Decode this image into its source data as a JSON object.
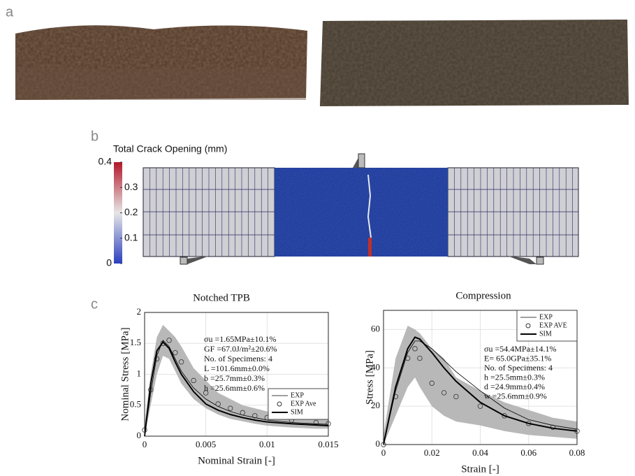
{
  "panels": {
    "a": "a",
    "b": "b",
    "c": "c"
  },
  "colorbar": {
    "title": "Total Crack Opening (mm)",
    "lim": [
      0,
      0.4
    ],
    "ticks": [
      0.4,
      0.3,
      0.2,
      0.1,
      0
    ]
  },
  "chart_data": [
    {
      "type": "line",
      "title": "Notched TPB",
      "xlabel": "Nominal Strain [-]",
      "ylabel": "Nominal Stress [MPa]",
      "xlim": [
        0,
        0.015
      ],
      "ylim": [
        0,
        2
      ],
      "xticks": [
        0,
        0.005,
        0.01,
        0.015
      ],
      "yticks": [
        0,
        0.5,
        1,
        1.5,
        2
      ],
      "grid": true,
      "legend": "lower right",
      "x": [
        0,
        0.0005,
        0.001,
        0.0015,
        0.002,
        0.0025,
        0.003,
        0.004,
        0.005,
        0.006,
        0.007,
        0.008,
        0.009,
        0.01,
        0.012,
        0.014,
        0.015
      ],
      "band": {
        "color": "#b8b8b8",
        "upper": [
          0.2,
          1.0,
          1.6,
          1.8,
          1.7,
          1.6,
          1.45,
          1.1,
          0.9,
          0.7,
          0.6,
          0.5,
          0.45,
          0.4,
          0.35,
          0.3,
          0.28
        ],
        "lower": [
          0,
          0.5,
          1.0,
          1.3,
          1.25,
          1.05,
          0.85,
          0.6,
          0.45,
          0.35,
          0.28,
          0.24,
          0.2,
          0.17,
          0.14,
          0.12,
          0.12
        ]
      },
      "series": [
        {
          "name": "EXP",
          "color": "#000000",
          "kind": "line",
          "width": 0.8,
          "values": [
            0,
            0.7,
            1.3,
            1.55,
            1.45,
            1.25,
            1.05,
            0.78,
            0.6,
            0.48,
            0.4,
            0.34,
            0.3,
            0.26,
            0.22,
            0.2,
            0.19
          ]
        },
        {
          "name": "EXP Ave",
          "color": "#333333",
          "kind": "markers",
          "width": 0.8,
          "values": [
            0.1,
            0.75,
            1.25,
            1.5,
            1.55,
            1.35,
            1.2,
            0.9,
            0.7,
            0.52,
            0.45,
            0.38,
            0.33,
            0.3,
            0.26,
            0.22,
            0.2
          ]
        },
        {
          "name": "SIM",
          "color": "#000000",
          "kind": "line",
          "width": 2,
          "values": [
            0,
            0.85,
            1.38,
            1.52,
            1.42,
            1.2,
            1.0,
            0.72,
            0.52,
            0.42,
            0.35,
            0.3,
            0.26,
            0.23,
            0.2,
            0.18,
            0.17
          ]
        }
      ],
      "annotations": [
        "σu =1.65MPa±10.1%",
        "GF =67.0J/m²±20.6%",
        "No. of Specimens: 4",
        "L =101.6mm±0.0%",
        "b =25.7mm±0.3%",
        "h =25.6mm±0.6%"
      ]
    },
    {
      "type": "line",
      "title": "Compression",
      "xlabel": "Strain [-]",
      "ylabel": "Stress [MPa]",
      "xlim": [
        0,
        0.08
      ],
      "ylim": [
        0,
        70
      ],
      "xticks": [
        0,
        0.02,
        0.04,
        0.06,
        0.08
      ],
      "yticks": [
        0,
        20,
        40,
        60
      ],
      "grid": true,
      "legend": "upper right",
      "x": [
        0,
        0.005,
        0.01,
        0.013,
        0.015,
        0.02,
        0.025,
        0.03,
        0.04,
        0.05,
        0.06,
        0.07,
        0.08
      ],
      "band": {
        "color": "#b8b8b8",
        "upper": [
          5,
          45,
          62,
          60,
          58,
          50,
          45,
          35,
          28,
          22,
          18,
          14,
          12
        ],
        "lower": [
          0,
          15,
          30,
          35,
          30,
          20,
          15,
          12,
          10,
          7,
          5,
          4,
          3
        ]
      },
      "series": [
        {
          "name": "EXP",
          "color": "#000000",
          "kind": "line",
          "width": 0.8,
          "values": [
            0,
            28,
            48,
            54,
            54,
            50,
            44,
            38,
            28,
            19,
            13,
            10,
            8
          ]
        },
        {
          "name": "EXP AVE",
          "color": "#333333",
          "kind": "markers",
          "width": 0.8,
          "values": [
            0,
            25,
            45,
            50,
            45,
            32,
            27,
            25,
            20,
            15,
            11,
            9,
            7
          ]
        },
        {
          "name": "SIM",
          "color": "#000000",
          "kind": "line",
          "width": 2,
          "values": [
            0,
            30,
            50,
            56,
            55,
            48,
            40,
            33,
            22,
            15,
            11,
            8.5,
            7
          ]
        }
      ],
      "annotations": [
        "σu =54.4MPa±14.1%",
        "E= 65.0GPa±35.1%",
        "No. of Specimens: 4",
        "h =25.5mm±0.3%",
        "d =24.9mm±0.4%",
        "w =25.6mm±0.9%"
      ]
    }
  ]
}
